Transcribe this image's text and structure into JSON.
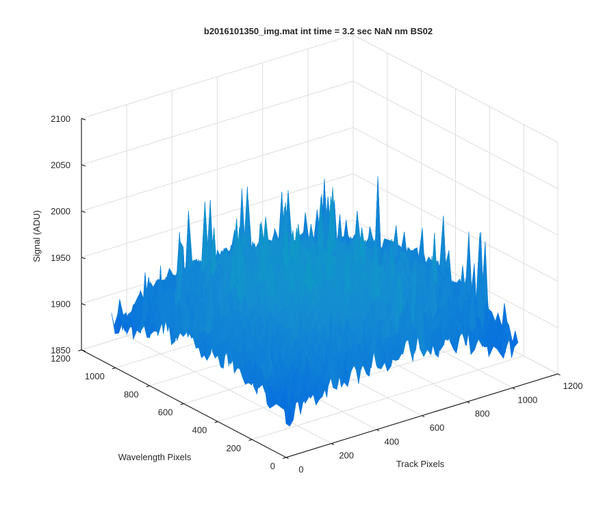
{
  "chart_data": {
    "type": "surface",
    "title": "b2016101350_img.mat int time = 3.2 sec  NaN nm BS02",
    "xlabel": "Track Pixels",
    "ylabel": "Wavelength Pixels",
    "zlabel": "Signal (ADU)",
    "xlim": [
      0,
      1200
    ],
    "ylim": [
      0,
      1200
    ],
    "zlim": [
      1850,
      2100
    ],
    "xticks": [
      "0",
      "200",
      "400",
      "600",
      "800",
      "1000",
      "1200"
    ],
    "yticks": [
      "0",
      "200",
      "400",
      "600",
      "800",
      "1000",
      "1200"
    ],
    "zticks": [
      "1850",
      "1900",
      "1950",
      "2000",
      "2050",
      "2100"
    ],
    "surface": {
      "x_range": [
        0,
        1024
      ],
      "y_range": [
        0,
        1024
      ],
      "baseline_signal": 1893,
      "center_signal": 1960,
      "peak_signal": 2015,
      "colormap": "parula"
    },
    "grid": true
  }
}
